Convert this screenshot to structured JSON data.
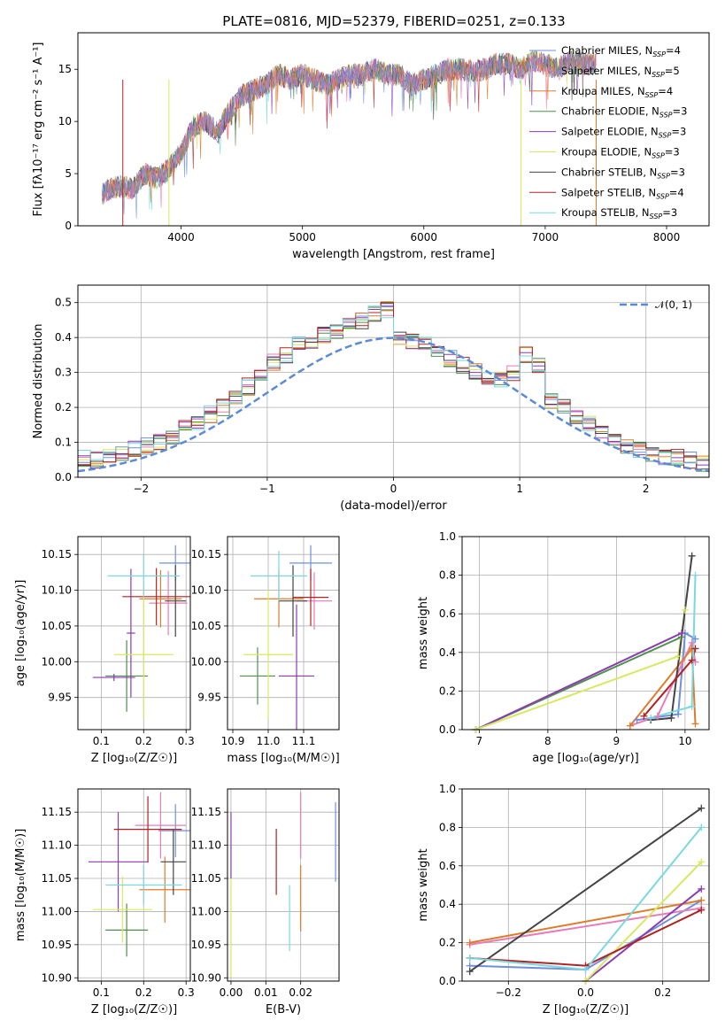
{
  "title": "PLATE=0816, MJD=52379, FIBERID=0251, z=0.133",
  "chart_data": [
    {
      "type": "line",
      "panel": "spectrum",
      "xlabel": "wavelength [Angstrom, rest frame]",
      "ylabel": "Flux [f_λ 10^-17 erg cm^-2 s^-1 A^-1]",
      "xlim": [
        3150,
        8350
      ],
      "ylim": [
        0,
        18.5
      ],
      "xticks": [
        4000,
        5000,
        6000,
        7000,
        8000
      ],
      "yticks": [
        0,
        5,
        10,
        15
      ],
      "legend_position": "right",
      "series": [
        {
          "name": "Chabrier MILES, N_SSP=4",
          "color": "#6f8fdc"
        },
        {
          "name": "Salpeter MILES, N_SSP=5",
          "color": "#e87cb8"
        },
        {
          "name": "Kroupa MILES, N_SSP=4",
          "color": "#e07b2a"
        },
        {
          "name": "Chabrier ELODIE, N_SSP=3",
          "color": "#4f8f4f"
        },
        {
          "name": "Salpeter ELODIE, N_SSP=3",
          "color": "#8a3db0"
        },
        {
          "name": "Kroupa ELODIE, N_SSP=3",
          "color": "#d8e860"
        },
        {
          "name": "Chabrier STELIB, N_SSP=3",
          "color": "#444444"
        },
        {
          "name": "Salpeter STELIB, N_SSP=4",
          "color": "#b22222"
        },
        {
          "name": "Kroupa STELIB, N_SSP=3",
          "color": "#79d8e0"
        }
      ],
      "data_outline": [
        [
          3350,
          3.0
        ],
        [
          3400,
          3.5
        ],
        [
          3500,
          3.8
        ],
        [
          3600,
          3.5
        ],
        [
          3700,
          5.0
        ],
        [
          3800,
          4.5
        ],
        [
          3900,
          5.5
        ],
        [
          4000,
          7.0
        ],
        [
          4100,
          9.5
        ],
        [
          4200,
          10.0
        ],
        [
          4300,
          9.0
        ],
        [
          4400,
          11.0
        ],
        [
          4500,
          12.5
        ],
        [
          4600,
          13.0
        ],
        [
          4700,
          13.5
        ],
        [
          4800,
          14.5
        ],
        [
          4900,
          14.0
        ],
        [
          5000,
          14.5
        ],
        [
          5100,
          14.0
        ],
        [
          5200,
          13.5
        ],
        [
          5300,
          14.0
        ],
        [
          5400,
          14.5
        ],
        [
          5500,
          14.5
        ],
        [
          5600,
          15.0
        ],
        [
          5700,
          14.5
        ],
        [
          5800,
          14.5
        ],
        [
          5900,
          13.5
        ],
        [
          6000,
          14.0
        ],
        [
          6100,
          14.5
        ],
        [
          6200,
          15.0
        ],
        [
          6300,
          15.0
        ],
        [
          6400,
          14.8
        ],
        [
          6500,
          15.0
        ],
        [
          6600,
          15.5
        ],
        [
          6700,
          15.5
        ],
        [
          6800,
          15.0
        ],
        [
          6900,
          15.8
        ],
        [
          7000,
          15.5
        ],
        [
          7100,
          15.0
        ],
        [
          7200,
          15.8
        ],
        [
          7300,
          15.5
        ],
        [
          7400,
          15.5
        ]
      ]
    },
    {
      "type": "line",
      "panel": "residual-histogram",
      "xlabel": "(data-model)/error",
      "ylabel": "Normed distribution",
      "xlim": [
        -2.5,
        2.5
      ],
      "ylim": [
        0,
        0.55
      ],
      "xticks": [
        -2,
        -1,
        0,
        1,
        2
      ],
      "yticks": [
        0.0,
        0.1,
        0.2,
        0.3,
        0.4,
        0.5
      ],
      "grid": true,
      "legend_position": "top-right",
      "legend": [
        "𝒩(0, 1)"
      ],
      "normal_curve": {
        "mean": 0,
        "sigma": 1,
        "color": "#5b8bd8"
      },
      "bin_width": 0.1,
      "histogram_outline": [
        0.02,
        0.025,
        0.03,
        0.04,
        0.05,
        0.055,
        0.05,
        0.06,
        0.07,
        0.085,
        0.09,
        0.1,
        0.12,
        0.14,
        0.16,
        0.18,
        0.2,
        0.23,
        0.26,
        0.3,
        0.33,
        0.35,
        0.38,
        0.39,
        0.41,
        0.42,
        0.44,
        0.45,
        0.47,
        0.48,
        0.4,
        0.39,
        0.38,
        0.36,
        0.34,
        0.32,
        0.3,
        0.29,
        0.28,
        0.3,
        0.35,
        0.32,
        0.22,
        0.2,
        0.17,
        0.15,
        0.13,
        0.11,
        0.09,
        0.08,
        0.07,
        0.06,
        0.06,
        0.05,
        0.04,
        0.035,
        0.03,
        0.025,
        0.02,
        0.02,
        0.015
      ]
    },
    {
      "type": "scatter",
      "panel": "age-vs-Z",
      "xlabel": "Z [log10(Z/Z_sun)]",
      "ylabel": "age [log10(age/yr)]",
      "xlim": [
        0.045,
        0.31
      ],
      "ylim": [
        9.905,
        10.175
      ],
      "xticks": [
        0.1,
        0.2,
        0.3
      ],
      "yticks": [
        9.95,
        10.0,
        10.05,
        10.1,
        10.15
      ],
      "grid": true,
      "points": [
        {
          "x": 0.275,
          "y": 10.138,
          "xerr": 0.038,
          "yerr": 0.025,
          "color": "#6f8fdc"
        },
        {
          "x": 0.258,
          "y": 10.082,
          "xerr": 0.045,
          "yerr": 0.045,
          "color": "#e87cb8"
        },
        {
          "x": 0.24,
          "y": 10.088,
          "xerr": 0.05,
          "yerr": 0.04,
          "color": "#e07b2a"
        },
        {
          "x": 0.16,
          "y": 9.98,
          "xerr": 0.05,
          "yerr": 0.05,
          "color": "#4f8f4f"
        },
        {
          "x": 0.17,
          "y": 10.04,
          "xerr": 0.01,
          "yerr": 0.09,
          "color": "#8a3db0"
        },
        {
          "x": 0.2,
          "y": 10.01,
          "xerr": 0.07,
          "yerr": 0.09,
          "color": "#d8e860"
        },
        {
          "x": 0.275,
          "y": 10.085,
          "xerr": 0.025,
          "yerr": 0.05,
          "color": "#444444"
        },
        {
          "x": 0.23,
          "y": 10.091,
          "xerr": 0.08,
          "yerr": 0.04,
          "color": "#b22222"
        },
        {
          "x": 0.2,
          "y": 10.12,
          "xerr": 0.085,
          "yerr": 0.03,
          "color": "#79d8e0"
        },
        {
          "x": 0.13,
          "y": 9.978,
          "xerr": 0.05,
          "yerr": 0.005,
          "color": "#8a3db0"
        }
      ]
    },
    {
      "type": "scatter",
      "panel": "age-vs-mass",
      "xlabel": "mass [log10(M/M_sun)]",
      "ylabel": "",
      "xlim": [
        10.885,
        11.2
      ],
      "ylim": [
        9.905,
        10.175
      ],
      "xticks": [
        10.9,
        11.0,
        11.1
      ],
      "yticks": [
        9.95,
        10.0,
        10.05,
        10.1,
        10.15
      ],
      "grid": true,
      "points": [
        {
          "x": 11.12,
          "y": 10.138,
          "xerr": 0.06,
          "yerr": 0.025,
          "color": "#6f8fdc"
        },
        {
          "x": 11.13,
          "y": 10.085,
          "xerr": 0.05,
          "yerr": 0.04,
          "color": "#e87cb8"
        },
        {
          "x": 11.03,
          "y": 10.088,
          "xerr": 0.07,
          "yerr": 0.04,
          "color": "#e07b2a"
        },
        {
          "x": 10.97,
          "y": 9.98,
          "xerr": 0.05,
          "yerr": 0.04,
          "color": "#4f8f4f"
        },
        {
          "x": 11.08,
          "y": 9.98,
          "xerr": 0.05,
          "yerr": 0.1,
          "color": "#8a3db0"
        },
        {
          "x": 11.0,
          "y": 10.01,
          "xerr": 0.07,
          "yerr": 0.09,
          "color": "#d8e860"
        },
        {
          "x": 11.07,
          "y": 10.085,
          "xerr": 0.04,
          "yerr": 0.05,
          "color": "#444444"
        },
        {
          "x": 11.12,
          "y": 10.09,
          "xerr": 0.05,
          "yerr": 0.04,
          "color": "#b22222"
        },
        {
          "x": 11.03,
          "y": 10.12,
          "xerr": 0.08,
          "yerr": 0.035,
          "color": "#79d8e0"
        }
      ]
    },
    {
      "type": "line",
      "panel": "mass-weight-vs-age",
      "xlabel": "age [log10(age/yr)]",
      "ylabel": "mass weight",
      "xlim": [
        6.75,
        10.35
      ],
      "ylim": [
        0,
        1.0
      ],
      "xticks": [
        7,
        8,
        9,
        10
      ],
      "yticks": [
        0.0,
        0.2,
        0.4,
        0.6,
        0.8,
        1.0
      ],
      "grid": true,
      "series": [
        {
          "color": "#6f8fdc",
          "x": [
            9.3,
            9.9,
            10.0,
            10.15
          ],
          "y": [
            0.05,
            0.08,
            0.5,
            0.47
          ]
        },
        {
          "color": "#e87cb8",
          "x": [
            9.2,
            9.6,
            10.1,
            10.15
          ],
          "y": [
            0.02,
            0.07,
            0.45,
            0.35
          ]
        },
        {
          "color": "#e07b2a",
          "x": [
            9.2,
            10.1,
            10.15
          ],
          "y": [
            0.02,
            0.42,
            0.03
          ]
        },
        {
          "color": "#4f8f4f",
          "x": [
            6.95,
            9.95
          ],
          "y": [
            0.0,
            0.48
          ]
        },
        {
          "color": "#8a3db0",
          "x": [
            6.95,
            9.95
          ],
          "y": [
            0.0,
            0.5
          ]
        },
        {
          "color": "#d8e860",
          "x": [
            6.95,
            9.9,
            10.0
          ],
          "y": [
            0.0,
            0.38,
            0.62
          ]
        },
        {
          "color": "#444444",
          "x": [
            9.5,
            9.8,
            10.1
          ],
          "y": [
            0.05,
            0.06,
            0.9
          ]
        },
        {
          "color": "#b22222",
          "x": [
            9.4,
            10.1,
            10.15
          ],
          "y": [
            0.07,
            0.36,
            0.42
          ]
        },
        {
          "color": "#79d8e0",
          "x": [
            9.5,
            10.1,
            10.15
          ],
          "y": [
            0.06,
            0.12,
            0.8
          ]
        }
      ]
    },
    {
      "type": "scatter",
      "panel": "mass-vs-Z",
      "xlabel": "Z [log10(Z/Z_sun)]",
      "ylabel": "mass [log10(M/M_sun)]",
      "xlim": [
        0.045,
        0.31
      ],
      "ylim": [
        10.895,
        11.185
      ],
      "xticks": [
        0.1,
        0.2,
        0.3
      ],
      "yticks": [
        10.9,
        10.95,
        11.0,
        11.05,
        11.1,
        11.15
      ],
      "grid": true,
      "points": [
        {
          "x": 0.275,
          "y": 11.122,
          "xerr": 0.04,
          "yerr": 0.04,
          "color": "#6f8fdc"
        },
        {
          "x": 0.24,
          "y": 11.13,
          "xerr": 0.06,
          "yerr": 0.05,
          "color": "#e87cb8"
        },
        {
          "x": 0.25,
          "y": 11.033,
          "xerr": 0.06,
          "yerr": 0.05,
          "color": "#e07b2a"
        },
        {
          "x": 0.16,
          "y": 10.972,
          "xerr": 0.05,
          "yerr": 0.04,
          "color": "#4f8f4f"
        },
        {
          "x": 0.14,
          "y": 11.075,
          "xerr": 0.07,
          "yerr": 0.075,
          "color": "#8a3db0"
        },
        {
          "x": 0.15,
          "y": 11.003,
          "xerr": 0.07,
          "yerr": 0.05,
          "color": "#d8e860"
        },
        {
          "x": 0.27,
          "y": 11.075,
          "xerr": 0.03,
          "yerr": 0.05,
          "color": "#444444"
        },
        {
          "x": 0.21,
          "y": 11.124,
          "xerr": 0.08,
          "yerr": 0.05,
          "color": "#b22222"
        },
        {
          "x": 0.2,
          "y": 11.04,
          "xerr": 0.09,
          "yerr": 0.03,
          "color": "#79d8e0"
        }
      ]
    },
    {
      "type": "scatter",
      "panel": "mass-vs-EBV",
      "xlabel": "E(B-V)",
      "ylabel": "",
      "xlim": [
        -0.001,
        0.031
      ],
      "ylim": [
        10.895,
        11.185
      ],
      "xticks": [
        0.0,
        0.01,
        0.02
      ],
      "yticks": [
        10.9,
        10.95,
        11.0,
        11.05,
        11.1,
        11.15
      ],
      "grid": true,
      "points": [
        {
          "x": 0.03,
          "y": 11.105,
          "yerr": 0.06,
          "color": "#6f8fdc"
        },
        {
          "x": 0.02,
          "y": 11.13,
          "yerr": 0.05,
          "color": "#e87cb8"
        },
        {
          "x": 0.02,
          "y": 11.02,
          "yerr": 0.05,
          "color": "#e07b2a"
        },
        {
          "x": 0.0,
          "y": 11.0,
          "yerr": 0.1,
          "color": "#d8e860"
        },
        {
          "x": 0.0,
          "y": 11.1,
          "yerr": 0.05,
          "color": "#8a3db0"
        },
        {
          "x": 0.013,
          "y": 11.075,
          "yerr": 0.05,
          "color": "#b22222"
        },
        {
          "x": 0.0168,
          "y": 10.99,
          "yerr": 0.05,
          "color": "#79d8e0"
        }
      ]
    },
    {
      "type": "line",
      "panel": "mass-weight-vs-Z",
      "xlabel": "Z [log10(Z/Z_sun)]",
      "ylabel": "mass weight",
      "xlim": [
        -0.32,
        0.32
      ],
      "ylim": [
        0,
        1.0
      ],
      "xticks": [
        -0.2,
        0.0,
        0.2
      ],
      "yticks": [
        0.0,
        0.2,
        0.4,
        0.6,
        0.8,
        1.0
      ],
      "grid": true,
      "series": [
        {
          "color": "#6f8fdc",
          "x": [
            -0.3,
            0.0,
            0.3
          ],
          "y": [
            0.08,
            0.06,
            0.42
          ]
        },
        {
          "color": "#e87cb8",
          "x": [
            -0.3,
            0.3
          ],
          "y": [
            0.19,
            0.38
          ]
        },
        {
          "color": "#e07b2a",
          "x": [
            -0.3,
            0.3
          ],
          "y": [
            0.2,
            0.42
          ]
        },
        {
          "color": "#8a3db0",
          "x": [
            0.0,
            0.3
          ],
          "y": [
            0.0,
            0.48
          ]
        },
        {
          "color": "#d8e860",
          "x": [
            0.0,
            0.3
          ],
          "y": [
            0.0,
            0.62
          ]
        },
        {
          "color": "#444444",
          "x": [
            -0.3,
            0.3
          ],
          "y": [
            0.05,
            0.9
          ]
        },
        {
          "color": "#b22222",
          "x": [
            -0.3,
            0.0,
            0.3
          ],
          "y": [
            0.12,
            0.08,
            0.37
          ]
        },
        {
          "color": "#79d8e0",
          "x": [
            -0.3,
            0.0,
            0.3
          ],
          "y": [
            0.12,
            0.06,
            0.8
          ]
        }
      ]
    }
  ]
}
